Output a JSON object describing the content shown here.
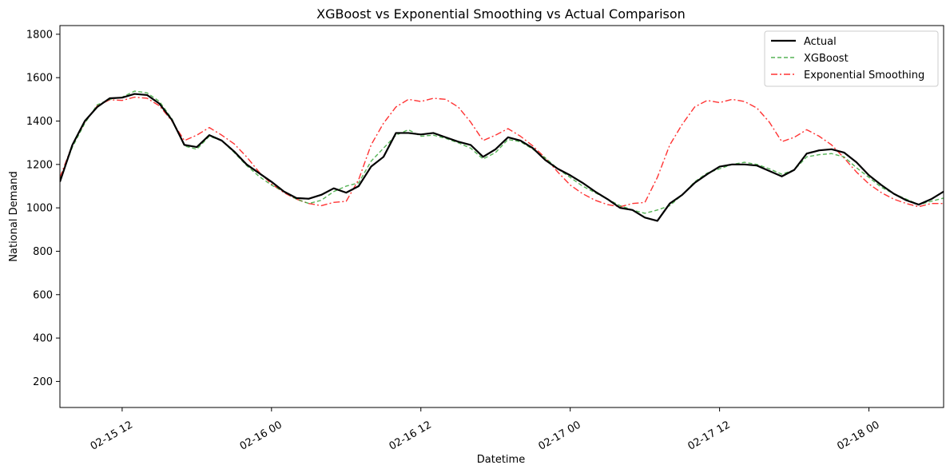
{
  "chart_data": {
    "type": "line",
    "title": "XGBoost vs Exponential Smoothing vs Actual Comparison",
    "xlabel": "Datetime",
    "ylabel": "National Demand",
    "xlim_hours": [
      0,
      71
    ],
    "ylim": [
      80,
      1840
    ],
    "yticks": [
      200,
      400,
      600,
      800,
      1000,
      1200,
      1400,
      1600,
      1800
    ],
    "xticks": [
      {
        "hour": 5,
        "label": "02-15 12"
      },
      {
        "hour": 17,
        "label": "02-16 00"
      },
      {
        "hour": 29,
        "label": "02-16 12"
      },
      {
        "hour": 41,
        "label": "02-17 00"
      },
      {
        "hour": 53,
        "label": "02-17 12"
      },
      {
        "hour": 65,
        "label": "02-18 00"
      }
    ],
    "x_hours": [
      0,
      1,
      2,
      3,
      4,
      5,
      6,
      7,
      8,
      9,
      10,
      11,
      12,
      13,
      14,
      15,
      16,
      17,
      18,
      19,
      20,
      21,
      22,
      23,
      24,
      25,
      26,
      27,
      28,
      29,
      30,
      31,
      32,
      33,
      34,
      35,
      36,
      37,
      38,
      39,
      40,
      41,
      42,
      43,
      44,
      45,
      46,
      47,
      48,
      49,
      50,
      51,
      52,
      53,
      54,
      55,
      56,
      57,
      58,
      59,
      60,
      61,
      62,
      63,
      64,
      65,
      66,
      67,
      68,
      69,
      70,
      71
    ],
    "series": [
      {
        "name": "Actual",
        "color": "#000000",
        "style": "solid",
        "values": [
          1120,
          1290,
          1400,
          1465,
          1505,
          1508,
          1525,
          1520,
          1480,
          1405,
          1290,
          1280,
          1335,
          1310,
          1260,
          1200,
          1160,
          1120,
          1075,
          1045,
          1042,
          1060,
          1090,
          1070,
          1100,
          1190,
          1235,
          1345,
          1345,
          1338,
          1345,
          1325,
          1305,
          1290,
          1235,
          1270,
          1325,
          1310,
          1275,
          1220,
          1180,
          1150,
          1115,
          1075,
          1040,
          1000,
          990,
          955,
          940,
          1020,
          1060,
          1115,
          1155,
          1190,
          1200,
          1200,
          1195,
          1170,
          1145,
          1175,
          1250,
          1265,
          1270,
          1255,
          1210,
          1150,
          1105,
          1065,
          1035,
          1015,
          1040,
          1075
        ]
      },
      {
        "name": "XGBoost",
        "color": "#2ca02c",
        "style": "dashed",
        "values": [
          1130,
          1280,
          1390,
          1475,
          1500,
          1510,
          1538,
          1530,
          1490,
          1410,
          1285,
          1270,
          1330,
          1310,
          1255,
          1195,
          1145,
          1105,
          1075,
          1040,
          1020,
          1035,
          1075,
          1100,
          1115,
          1215,
          1275,
          1335,
          1360,
          1330,
          1335,
          1320,
          1300,
          1275,
          1225,
          1255,
          1315,
          1305,
          1270,
          1230,
          1180,
          1140,
          1100,
          1070,
          1040,
          1010,
          990,
          975,
          990,
          1010,
          1060,
          1120,
          1160,
          1180,
          1200,
          1210,
          1200,
          1180,
          1155,
          1175,
          1235,
          1245,
          1250,
          1235,
          1185,
          1140,
          1095,
          1065,
          1040,
          1015,
          1030,
          1045
        ]
      },
      {
        "name": "Exponential Smoothing",
        "color": "#ff0000",
        "style": "dashdot",
        "values": [
          1140,
          1290,
          1395,
          1470,
          1498,
          1495,
          1510,
          1505,
          1470,
          1400,
          1310,
          1335,
          1370,
          1335,
          1295,
          1235,
          1165,
          1110,
          1070,
          1040,
          1020,
          1010,
          1025,
          1030,
          1130,
          1290,
          1390,
          1465,
          1500,
          1490,
          1505,
          1500,
          1465,
          1395,
          1310,
          1335,
          1365,
          1330,
          1285,
          1230,
          1165,
          1105,
          1065,
          1035,
          1015,
          1005,
          1020,
          1025,
          1140,
          1290,
          1385,
          1465,
          1495,
          1485,
          1500,
          1490,
          1460,
          1395,
          1305,
          1325,
          1360,
          1330,
          1290,
          1230,
          1165,
          1110,
          1070,
          1040,
          1020,
          1005,
          1020,
          1020
        ]
      }
    ],
    "legend": {
      "position": "top-right",
      "entries": [
        "Actual",
        "XGBoost",
        "Exponential Smoothing"
      ]
    },
    "grid": false
  }
}
